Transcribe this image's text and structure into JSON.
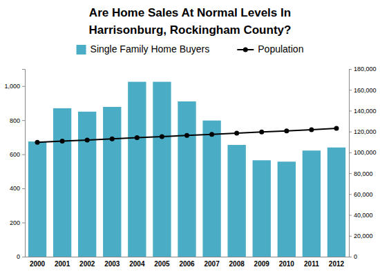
{
  "chart_data": {
    "type": "bar",
    "title": [
      "Are Home Sales At Normal Levels In",
      "Harrisonburg, Rockingham County?"
    ],
    "categories": [
      "2000",
      "2001",
      "2002",
      "2003",
      "2004",
      "2005",
      "2006",
      "2007",
      "2008",
      "2009",
      "2010",
      "2011",
      "2012"
    ],
    "series": [
      {
        "name": "Single Family Home Buyers",
        "type": "bar",
        "color": "#4bacc6",
        "values": [
          675,
          870,
          850,
          878,
          1025,
          1025,
          910,
          798,
          655,
          565,
          557,
          622,
          640
        ]
      },
      {
        "name": "Population",
        "type": "line",
        "color": "#000000",
        "marker": "circle",
        "axis": "y2",
        "values": [
          109700,
          110800,
          111900,
          113000,
          114100,
          115100,
          116300,
          117300,
          118500,
          119600,
          120600,
          121700,
          123100
        ]
      }
    ],
    "ylim": [
      0,
      1100
    ],
    "yticks": [
      0,
      200,
      400,
      600,
      800,
      {
        "value": 1000,
        "label": "1,000"
      }
    ],
    "y2lim": [
      0,
      180000
    ],
    "y2ticks": [
      0,
      {
        "value": 20000,
        "label": "20,000"
      },
      {
        "value": 40000,
        "label": "40,000"
      },
      {
        "value": 60000,
        "label": "60,000"
      },
      {
        "value": 80000,
        "label": "80,000"
      },
      {
        "value": 100000,
        "label": "100,000"
      },
      {
        "value": 120000,
        "label": "120,000"
      },
      {
        "value": 140000,
        "label": "140,000"
      },
      {
        "value": 160000,
        "label": "160,000"
      },
      {
        "value": 180000,
        "label": "180,000"
      }
    ],
    "grid": false,
    "legend": "top"
  }
}
